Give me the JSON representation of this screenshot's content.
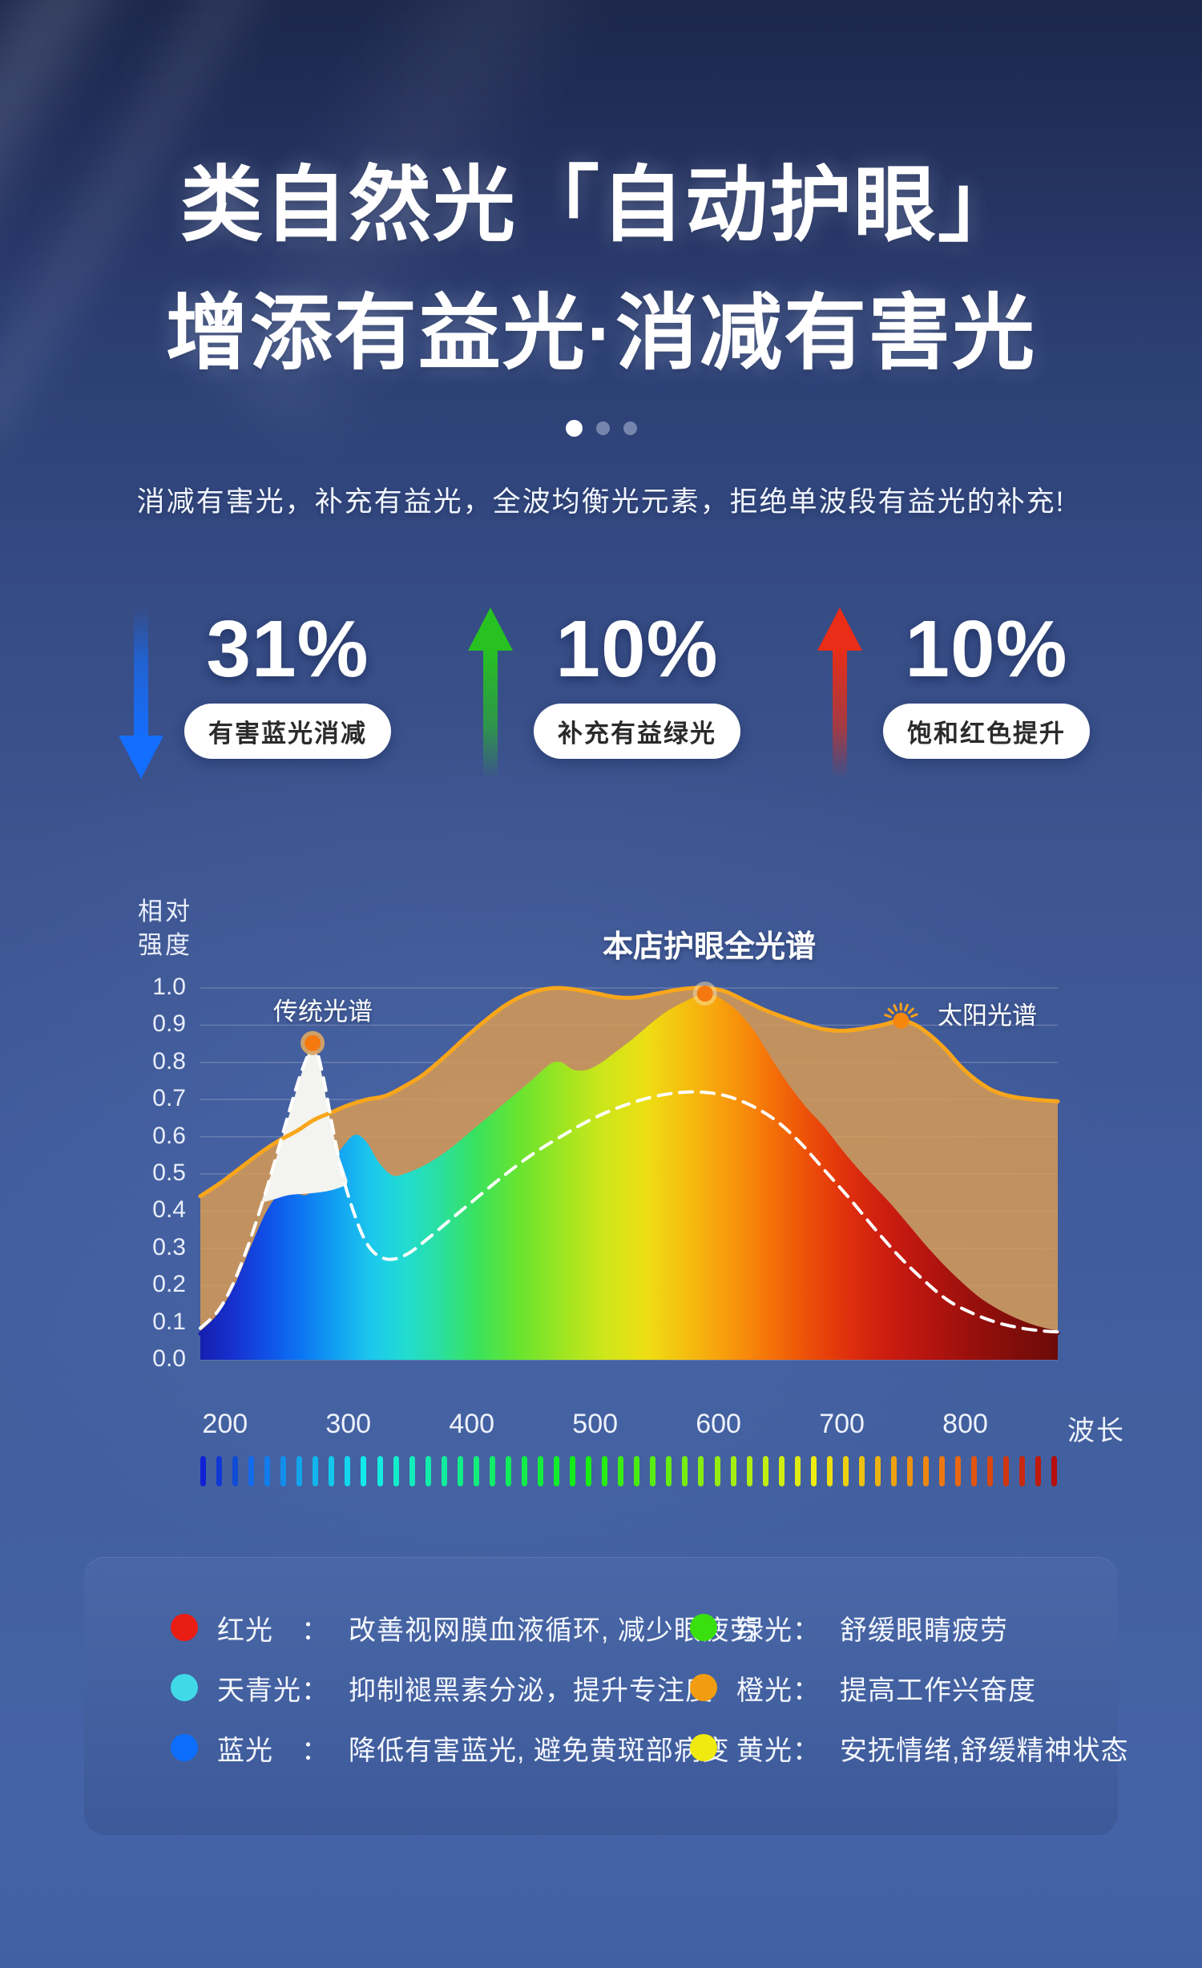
{
  "page": {
    "title_line1": "类自然光「自动护眼」",
    "title_line2": "增添有益光·消减有害光",
    "subtitle": "消减有害光，补充有益光，全波均衡光元素，拒绝单波段有益光的补充!",
    "carousel": {
      "count": 3,
      "active_index": 0
    }
  },
  "stats": [
    {
      "value": "31%",
      "label": "有害蓝光消减",
      "direction": "down",
      "arrow_color": "#146eff"
    },
    {
      "value": "10%",
      "label": "补充有益绿光",
      "direction": "up",
      "arrow_color": "#27c221"
    },
    {
      "value": "10%",
      "label": "饱和红色提升",
      "direction": "up",
      "arrow_color": "#ea2d16"
    }
  ],
  "chart_data": {
    "type": "area",
    "ylabel": "相对强度",
    "ylabel_lines": [
      "相对",
      "强度"
    ],
    "xlabel": "波长",
    "x_range": [
      180,
      875
    ],
    "y_range": [
      0,
      1.0
    ],
    "x_ticks": [
      200,
      300,
      400,
      500,
      600,
      700,
      800
    ],
    "y_ticks": [
      "1.0",
      "0.9",
      "0.8",
      "0.7",
      "0.6",
      "0.5",
      "0.4",
      "0.3",
      "0.2",
      "0.1",
      "0.0"
    ],
    "grid": true,
    "labels": {
      "traditional": "传统光谱",
      "store": "本店护眼全光谱",
      "solar": "太阳光谱"
    },
    "series": [
      {
        "name": "太阳光谱",
        "style": "area",
        "stroke": "#f9a61b",
        "fill": "rgba(221,158,82,0.82)",
        "points": [
          [
            180,
            0.44
          ],
          [
            196,
            0.475
          ],
          [
            212,
            0.515
          ],
          [
            228,
            0.555
          ],
          [
            244,
            0.59
          ],
          [
            258,
            0.615
          ],
          [
            272,
            0.645
          ],
          [
            286,
            0.665
          ],
          [
            300,
            0.685
          ],
          [
            315,
            0.7
          ],
          [
            330,
            0.71
          ],
          [
            345,
            0.735
          ],
          [
            360,
            0.765
          ],
          [
            378,
            0.815
          ],
          [
            396,
            0.87
          ],
          [
            412,
            0.915
          ],
          [
            428,
            0.955
          ],
          [
            442,
            0.98
          ],
          [
            456,
            0.995
          ],
          [
            470,
            1.0
          ],
          [
            486,
            0.995
          ],
          [
            502,
            0.985
          ],
          [
            518,
            0.975
          ],
          [
            534,
            0.975
          ],
          [
            550,
            0.985
          ],
          [
            566,
            0.995
          ],
          [
            580,
            1.0
          ],
          [
            592,
            1.0
          ],
          [
            606,
            0.99
          ],
          [
            622,
            0.965
          ],
          [
            638,
            0.94
          ],
          [
            654,
            0.92
          ],
          [
            668,
            0.905
          ],
          [
            684,
            0.89
          ],
          [
            700,
            0.885
          ],
          [
            716,
            0.89
          ],
          [
            732,
            0.9
          ],
          [
            748,
            0.912
          ],
          [
            760,
            0.9
          ],
          [
            772,
            0.872
          ],
          [
            784,
            0.835
          ],
          [
            796,
            0.79
          ],
          [
            808,
            0.755
          ],
          [
            822,
            0.725
          ],
          [
            838,
            0.708
          ],
          [
            856,
            0.7
          ],
          [
            875,
            0.695
          ]
        ]
      },
      {
        "name": "本店护眼全光谱",
        "style": "area-rainbow",
        "points": [
          [
            180,
            0.07
          ],
          [
            194,
            0.115
          ],
          [
            208,
            0.19
          ],
          [
            222,
            0.3
          ],
          [
            234,
            0.39
          ],
          [
            244,
            0.44
          ],
          [
            252,
            0.455
          ],
          [
            260,
            0.44
          ],
          [
            268,
            0.44
          ],
          [
            278,
            0.475
          ],
          [
            288,
            0.53
          ],
          [
            298,
            0.575
          ],
          [
            306,
            0.6
          ],
          [
            314,
            0.58
          ],
          [
            324,
            0.525
          ],
          [
            336,
            0.49
          ],
          [
            350,
            0.5
          ],
          [
            366,
            0.525
          ],
          [
            384,
            0.565
          ],
          [
            402,
            0.615
          ],
          [
            420,
            0.665
          ],
          [
            438,
            0.715
          ],
          [
            452,
            0.755
          ],
          [
            464,
            0.79
          ],
          [
            472,
            0.795
          ],
          [
            482,
            0.775
          ],
          [
            494,
            0.775
          ],
          [
            506,
            0.795
          ],
          [
            518,
            0.825
          ],
          [
            532,
            0.86
          ],
          [
            546,
            0.9
          ],
          [
            560,
            0.935
          ],
          [
            574,
            0.96
          ],
          [
            584,
            0.975
          ],
          [
            592,
            0.98
          ],
          [
            602,
            0.965
          ],
          [
            614,
            0.935
          ],
          [
            628,
            0.88
          ],
          [
            642,
            0.805
          ],
          [
            656,
            0.735
          ],
          [
            670,
            0.675
          ],
          [
            684,
            0.625
          ],
          [
            698,
            0.565
          ],
          [
            712,
            0.51
          ],
          [
            726,
            0.46
          ],
          [
            740,
            0.41
          ],
          [
            754,
            0.355
          ],
          [
            768,
            0.3
          ],
          [
            782,
            0.25
          ],
          [
            796,
            0.205
          ],
          [
            810,
            0.165
          ],
          [
            824,
            0.135
          ],
          [
            840,
            0.108
          ],
          [
            856,
            0.088
          ],
          [
            875,
            0.072
          ]
        ]
      },
      {
        "name": "传统光谱峰",
        "style": "closed-area",
        "fill": "#f3f3f0",
        "points": [
          [
            230,
            0.43
          ],
          [
            239,
            0.515
          ],
          [
            249,
            0.625
          ],
          [
            258,
            0.725
          ],
          [
            265,
            0.8
          ],
          [
            271,
            0.852
          ],
          [
            277,
            0.79
          ],
          [
            284,
            0.665
          ],
          [
            291,
            0.565
          ],
          [
            297,
            0.505
          ],
          [
            299,
            0.475
          ],
          [
            292,
            0.462
          ],
          [
            280,
            0.452
          ],
          [
            266,
            0.447
          ],
          [
            252,
            0.443
          ],
          [
            240,
            0.432
          ],
          [
            232,
            0.425
          ]
        ]
      },
      {
        "name": "传统光谱",
        "style": "dashed",
        "stroke": "#ffffff",
        "points": [
          [
            180,
            0.085
          ],
          [
            194,
            0.13
          ],
          [
            206,
            0.2
          ],
          [
            218,
            0.3
          ],
          [
            230,
            0.42
          ],
          [
            240,
            0.53
          ],
          [
            250,
            0.645
          ],
          [
            259,
            0.745
          ],
          [
            266,
            0.81
          ],
          [
            272,
            0.85
          ],
          [
            279,
            0.77
          ],
          [
            287,
            0.63
          ],
          [
            295,
            0.5
          ],
          [
            304,
            0.4
          ],
          [
            313,
            0.325
          ],
          [
            322,
            0.285
          ],
          [
            334,
            0.27
          ],
          [
            348,
            0.285
          ],
          [
            364,
            0.325
          ],
          [
            382,
            0.375
          ],
          [
            402,
            0.43
          ],
          [
            424,
            0.49
          ],
          [
            448,
            0.55
          ],
          [
            472,
            0.6
          ],
          [
            496,
            0.645
          ],
          [
            520,
            0.68
          ],
          [
            544,
            0.705
          ],
          [
            566,
            0.718
          ],
          [
            586,
            0.72
          ],
          [
            606,
            0.71
          ],
          [
            626,
            0.685
          ],
          [
            646,
            0.645
          ],
          [
            666,
            0.585
          ],
          [
            686,
            0.51
          ],
          [
            706,
            0.435
          ],
          [
            726,
            0.355
          ],
          [
            746,
            0.28
          ],
          [
            766,
            0.215
          ],
          [
            786,
            0.16
          ],
          [
            806,
            0.125
          ],
          [
            826,
            0.1
          ],
          [
            846,
            0.085
          ],
          [
            862,
            0.078
          ],
          [
            875,
            0.075
          ]
        ]
      }
    ],
    "markers": [
      {
        "name": "traditional-peak",
        "x": 271,
        "y": 0.852,
        "dot": "#f5790f",
        "ring": "rgba(213,164,102,0.95)"
      },
      {
        "name": "store-peak",
        "x": 589,
        "y": 0.985,
        "dot": "#f5790f",
        "ring": "rgba(252,224,168,0.50)"
      },
      {
        "name": "solar-sun",
        "x": 748,
        "y": 0.912,
        "dot": "#f6870e",
        "rays": true
      }
    ],
    "rainbow_stops": [
      [
        0,
        "#151fb0"
      ],
      [
        4,
        "#1732cf"
      ],
      [
        8,
        "#0f52e8"
      ],
      [
        12,
        "#0d78f2"
      ],
      [
        16,
        "#12a2f2"
      ],
      [
        20,
        "#1cc8ec"
      ],
      [
        24,
        "#22dcd0"
      ],
      [
        28,
        "#2adf9f"
      ],
      [
        32,
        "#38e25f"
      ],
      [
        37,
        "#66e430"
      ],
      [
        42,
        "#9ce522"
      ],
      [
        47,
        "#cde61a"
      ],
      [
        52,
        "#eede14"
      ],
      [
        56,
        "#f4c310"
      ],
      [
        60,
        "#f7a60d"
      ],
      [
        64,
        "#f7870a"
      ],
      [
        68,
        "#f26608"
      ],
      [
        72,
        "#ea4709"
      ],
      [
        76,
        "#dd2d0d"
      ],
      [
        80,
        "#cc1d10"
      ],
      [
        85,
        "#b5140f"
      ],
      [
        90,
        "#99100c"
      ],
      [
        95,
        "#800d0a"
      ],
      [
        100,
        "#6d0b09"
      ]
    ],
    "colorbar": {
      "count": 54,
      "hue_start": 235,
      "hue_end": 0
    }
  },
  "legend": {
    "left": [
      {
        "name": "红光　：",
        "desc": "改善视网膜血液循环, 减少眼疲劳",
        "color": "#ea1d15"
      },
      {
        "name": "天青光：",
        "desc": "抑制褪黑素分泌，提升专注度",
        "color": "#3fd9e8"
      },
      {
        "name": "蓝光　：",
        "desc": "降低有害蓝光, 避免黄斑部病变",
        "color": "#0d6efd"
      }
    ],
    "right": [
      {
        "name": "绿光：",
        "desc": "舒缓眼睛疲劳",
        "color": "#39e00e"
      },
      {
        "name": "橙光：",
        "desc": "提高工作兴奋度",
        "color": "#f29d0f"
      },
      {
        "name": "黄光：",
        "desc": "安抚情绪,舒缓精神状态",
        "color": "#f0ea10"
      }
    ]
  }
}
